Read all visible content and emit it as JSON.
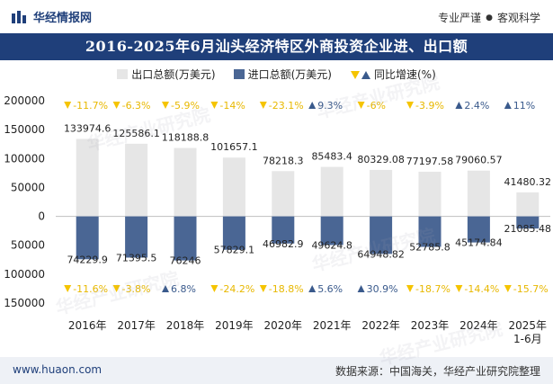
{
  "header": {
    "brand": "华经情报网",
    "slogan_left": "专业严谨",
    "slogan_dot": "●",
    "slogan_right": "客观科学"
  },
  "footer": {
    "website": "www.huaon.com",
    "source": "数据来源：中国海关，华经产业研究院整理"
  },
  "watermark": "华经产业研究院",
  "colors": {
    "title_bg": "#1f3f7a",
    "export_bar": "#e6e6e6",
    "import_bar": "#4a6694",
    "yoy_down": "#f5c400",
    "yoy_up": "#3a5a8c"
  },
  "chart_data": {
    "type": "bar",
    "title": "2016-2025年6月汕头经济特区外商投资企业进、出口额",
    "categories": [
      "2016年",
      "2017年",
      "2018年",
      "2019年",
      "2020年",
      "2021年",
      "2022年",
      "2023年",
      "2024年",
      "2025年\n1-6月"
    ],
    "series": [
      {
        "name": "出口总额(万美元)",
        "values": [
          133974.6,
          125586.1,
          118188.8,
          101657.1,
          78218.3,
          85483.4,
          80329.08,
          77197.58,
          79060.57,
          41480.32
        ],
        "labels": [
          "133974.6",
          "125586.1",
          "118188.8",
          "101657.1",
          "78218.3",
          "85483.4",
          "80329.08",
          "77197.58",
          "79060.57",
          "41480.32"
        ]
      },
      {
        "name": "进口总额(万美元)",
        "values": [
          74229.9,
          71395.5,
          76246,
          57829.1,
          46982.9,
          49624.8,
          64948.82,
          52785.8,
          45174.84,
          21085.48
        ],
        "labels": [
          "74229.9",
          "71395.5",
          "76246",
          "57829.1",
          "46982.9",
          "49624.8",
          "64948.82",
          "52785.8",
          "45174.84",
          "21085.48"
        ]
      }
    ],
    "yoy_legend": "同比增速(%)",
    "export_yoy": [
      {
        "dir": "down",
        "text": "-11.7%"
      },
      {
        "dir": "down",
        "text": "-6.3%"
      },
      {
        "dir": "down",
        "text": "-5.9%"
      },
      {
        "dir": "down",
        "text": "-14%"
      },
      {
        "dir": "down",
        "text": "-23.1%"
      },
      {
        "dir": "up",
        "text": "9.3%"
      },
      {
        "dir": "down",
        "text": "-6%"
      },
      {
        "dir": "down",
        "text": "-3.9%"
      },
      {
        "dir": "up",
        "text": "2.4%"
      },
      {
        "dir": "up",
        "text": "11%"
      }
    ],
    "import_yoy": [
      {
        "dir": "down",
        "text": "-11.6%"
      },
      {
        "dir": "down",
        "text": "-3.8%"
      },
      {
        "dir": "up",
        "text": "6.8%"
      },
      {
        "dir": "down",
        "text": "-24.2%"
      },
      {
        "dir": "down",
        "text": "-18.8%"
      },
      {
        "dir": "up",
        "text": "5.6%"
      },
      {
        "dir": "up",
        "text": "30.9%"
      },
      {
        "dir": "down",
        "text": "-18.7%"
      },
      {
        "dir": "down",
        "text": "-14.4%"
      },
      {
        "dir": "down",
        "text": "-15.7%"
      }
    ],
    "y_ticks": [
      200000,
      150000,
      100000,
      50000,
      0,
      -50000,
      -100000,
      -150000
    ],
    "y_tick_labels": [
      "200000",
      "150000",
      "100000",
      "50000",
      "0",
      "50000",
      "100000",
      "150000"
    ],
    "ylim": [
      -150000,
      200000
    ]
  }
}
